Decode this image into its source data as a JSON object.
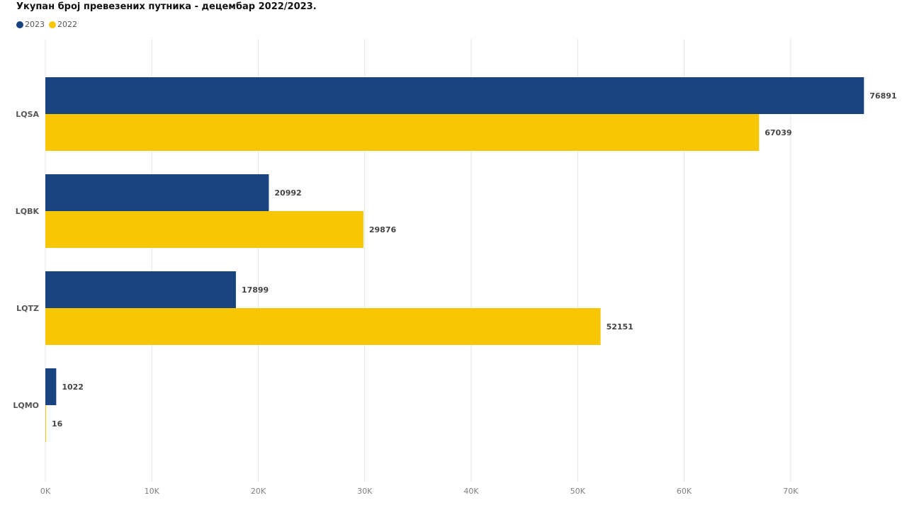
{
  "chart_data": {
    "type": "bar",
    "orientation": "horizontal",
    "title": "Укупан број превезених путника - децембар 2022/2023.",
    "categories": [
      "LQSA",
      "LQBK",
      "LQTZ",
      "LQMO"
    ],
    "series": [
      {
        "name": "2023",
        "color": "#1a4480",
        "values": [
          76891,
          20992,
          17899,
          1022
        ]
      },
      {
        "name": "2022",
        "color": "#f7c604",
        "values": [
          67039,
          29876,
          52151,
          16
        ]
      }
    ],
    "xlim": [
      0,
      77000
    ],
    "x_ticks": [
      0,
      10000,
      20000,
      30000,
      40000,
      50000,
      60000,
      70000
    ],
    "x_tick_labels": [
      "0K",
      "10K",
      "20K",
      "30K",
      "40K",
      "50K",
      "60K",
      "70K"
    ],
    "xlabel": "",
    "ylabel": "",
    "grid": "vertical",
    "legend_position": "top-left",
    "data_labels": true
  }
}
